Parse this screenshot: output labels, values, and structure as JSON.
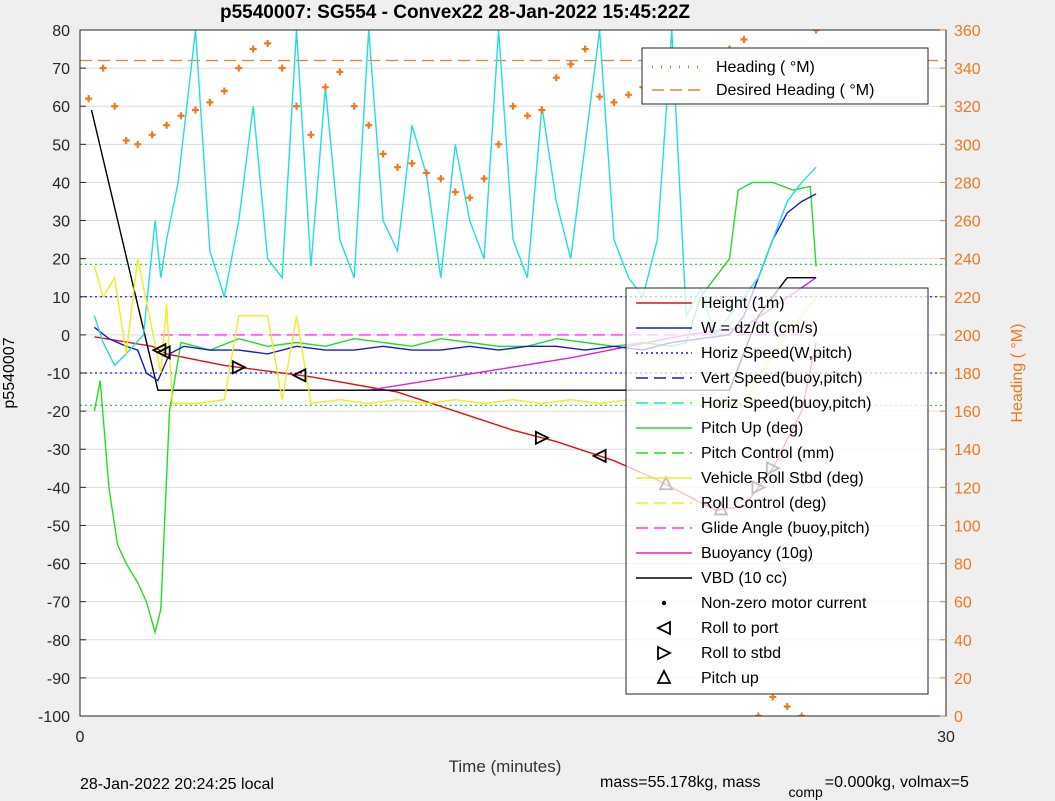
{
  "chart_data": {
    "type": "line",
    "title": "p5540007: SG554 - Convex22 28-Jan-2022 15:45:22Z",
    "xlabel": "Time (minutes)",
    "ylabel": "p5540007",
    "ylabel_right": "Heading (  °M)",
    "xlim": [
      0,
      30
    ],
    "ylim": [
      -100,
      80
    ],
    "ylim_right": [
      0,
      360
    ],
    "x_ticks": [
      "0",
      "30"
    ],
    "y_ticks": [
      "80",
      "70",
      "60",
      "50",
      "40",
      "30",
      "20",
      "10",
      "0",
      "-10",
      "-20",
      "-30",
      "-40",
      "-50",
      "-60",
      "-70",
      "-80",
      "-90",
      "-100"
    ],
    "y_ticks_right": [
      "360",
      "340",
      "320",
      "300",
      "280",
      "260",
      "240",
      "220",
      "200",
      "180",
      "160",
      "140",
      "120",
      "100",
      "80",
      "60",
      "40",
      "20",
      "0"
    ],
    "grid": true,
    "footer_left": "28-Jan-2022 20:24:25 local",
    "footer_right_a": "mass=55.178kg, mass",
    "footer_right_sub": "comp",
    "footer_right_b": "=0.000kg, volmax=5",
    "legend_top": {
      "placement": "top-right",
      "entries": [
        "Heading (  °M)",
        "Desired Heading (  °M)"
      ]
    },
    "legend_main": {
      "placement": "right",
      "entries": [
        "Height (1m)",
        "W = dz/dt (cm/s)",
        "Horiz Speed(W,pitch)",
        "Vert Speed(buoy,pitch)",
        "Horiz Speed(buoy,pitch)",
        "Pitch Up (deg)",
        "Pitch Control (mm)",
        "Vehicle Roll Stbd (deg)",
        "Roll Control (deg)",
        "Glide Angle (buoy,pitch)",
        "Buoyancy (10g)",
        "VBD (10 cc)",
        "Non-zero motor current",
        "Roll to port",
        "Roll to stbd",
        "Pitch up"
      ]
    },
    "reference_lines": [
      {
        "y": 18.5,
        "color": "#33cc33"
      },
      {
        "y": -18.5,
        "color": "#33cc33"
      },
      {
        "y": 10,
        "color": "#2222cc"
      },
      {
        "y": -10,
        "color": "#2222cc"
      },
      {
        "y_right": 344,
        "color": "#e8823a"
      }
    ],
    "series": [
      {
        "name": "Height (1m)",
        "color": "#e01010",
        "x": [
          0.5,
          2.5,
          3.0,
          5.0,
          8.0,
          11.0,
          15.0,
          16.5,
          18.5,
          20.0,
          21.0,
          22.0,
          23.0,
          24.0,
          25.0,
          25.5
        ],
        "y": [
          -0.5,
          -3,
          -5,
          -8,
          -11,
          -15,
          -25,
          -28,
          -33,
          -38,
          -42,
          -46,
          -45,
          -35,
          -20,
          -2
        ]
      },
      {
        "name": "Buoyancy (10g)",
        "color": "#dd22dd",
        "x": [
          2.7,
          10.0,
          17.0,
          21.0,
          23.0,
          25.5
        ],
        "y": [
          -14.5,
          -14.5,
          -6,
          0,
          2,
          15
        ]
      },
      {
        "name": "VBD (10 cc)",
        "color": "#000000",
        "x": [
          0.4,
          2.7,
          10.0,
          20.0,
          22.5,
          23.5,
          24.5,
          25.5
        ],
        "y": [
          59,
          -14.5,
          -14.5,
          -14.5,
          -14.5,
          5,
          15,
          15
        ]
      },
      {
        "name": "Glide Angle (buoy,pitch)",
        "color": "#ff33ff",
        "x": [
          2.8,
          25.5
        ],
        "y": [
          0,
          0
        ]
      },
      {
        "name": "Pitch Up (deg)",
        "color": "#22dd22",
        "x": [
          0.5,
          0.7,
          1.0,
          1.3,
          1.6,
          2.0,
          2.3,
          2.6,
          2.8,
          3.1,
          3.5,
          4.5,
          5.5,
          6.5,
          7.5,
          8.5,
          9.5,
          10.5,
          11.5,
          12.5,
          13.5,
          14.5,
          15.5,
          16.5,
          17.5,
          18.5,
          19.5,
          20.5,
          21.0,
          21.5,
          22.0,
          22.5,
          22.8,
          23.3,
          24.0,
          24.7,
          25.3,
          25.5
        ],
        "y": [
          -20,
          -12,
          -40,
          -55,
          -60,
          -65,
          -70,
          -78,
          -72,
          -20,
          -2,
          -4,
          -1,
          -3,
          -2,
          -3,
          -1,
          -2,
          -3,
          -1,
          -2,
          -3,
          -3,
          -1,
          -2,
          -3,
          -2,
          -3,
          -2,
          10,
          15,
          20,
          38,
          40,
          40,
          38,
          39,
          18
        ]
      },
      {
        "name": "W = dz/dt (cm/s)",
        "color": "#1a1acc",
        "x": [
          0.5,
          1.0,
          1.6,
          2.0,
          2.3,
          2.7,
          3.1,
          3.6,
          4.5,
          5.5,
          6.5,
          7.5,
          8.5,
          9.5,
          10.5,
          11.5,
          12.5,
          13.5,
          14.5,
          15.5,
          16.5,
          17.5,
          18.5,
          19.5,
          20.5,
          21.5,
          22.5,
          23.0,
          23.5,
          24.0,
          24.5,
          25.0,
          25.5
        ],
        "y": [
          2,
          -1,
          -3,
          -4,
          -10,
          -12,
          -5,
          -3,
          -4,
          -4,
          -5,
          -3,
          -4,
          -4,
          -3,
          -4,
          -4,
          -3,
          -4,
          -3,
          -3,
          -4,
          -3,
          -4,
          -2,
          -1,
          0,
          5,
          15,
          25,
          32,
          35,
          37
        ]
      },
      {
        "name": "Horiz Speed(buoy,pitch)",
        "color": "#22dddd",
        "x": [
          0.5,
          0.8,
          1.2,
          1.6,
          2.2,
          2.6,
          2.8,
          3.0,
          3.4,
          4.0,
          4.5,
          5.0,
          5.5,
          6.0,
          6.5,
          7.0,
          7.5,
          8.0,
          8.5,
          9.0,
          9.5,
          10.0,
          10.5,
          11.0,
          11.5,
          12.0,
          12.5,
          13.0,
          13.5,
          14.0,
          14.5,
          15.0,
          15.5,
          16.0,
          16.5,
          17.0,
          17.5,
          18.0,
          18.5,
          19.0,
          19.5,
          20.0,
          20.5,
          21.0,
          21.5,
          22.0,
          22.5,
          23.0,
          23.5,
          24.0,
          24.5,
          25.0,
          25.5
        ],
        "y": [
          5,
          -2,
          -8,
          -5,
          0,
          30,
          15,
          25,
          40,
          80,
          22,
          10,
          30,
          60,
          20,
          15,
          80,
          18,
          65,
          25,
          15,
          80,
          30,
          22,
          55,
          42,
          15,
          50,
          30,
          20,
          80,
          25,
          15,
          60,
          35,
          20,
          50,
          80,
          25,
          15,
          10,
          25,
          80,
          5,
          12,
          0,
          5,
          10,
          15,
          25,
          35,
          40,
          44
        ]
      },
      {
        "name": "Vehicle Roll Stbd (deg)",
        "color": "#eeee22",
        "x": [
          0.5,
          0.8,
          1.2,
          1.6,
          2.0,
          2.4,
          2.8,
          3.0,
          3.2,
          4.0,
          5.0,
          5.5,
          6.0,
          6.5,
          7.0,
          7.5,
          8.0,
          9.0,
          10.0,
          11.0,
          12.0,
          13.0,
          14.0,
          15.0,
          16.0,
          17.0,
          18.0,
          19.0,
          20.0,
          21.0,
          22.0,
          23.0,
          24.0,
          25.0,
          25.5
        ],
        "y": [
          18,
          10,
          15,
          -5,
          20,
          5,
          -10,
          8,
          -18,
          -18,
          -17,
          5,
          5,
          5,
          -17,
          5,
          -18,
          -17,
          -18,
          -17,
          -18,
          -17,
          -18,
          -17,
          -18,
          -17,
          -18,
          -17,
          -18,
          -17,
          -18,
          -18,
          -5,
          5,
          10
        ]
      }
    ],
    "heading_series": {
      "name": "Heading (  °M)",
      "color": "#f07820",
      "x": [
        0.3,
        0.8,
        1.2,
        1.6,
        2.0,
        2.5,
        3.0,
        3.5,
        4.0,
        4.5,
        5.0,
        5.5,
        6.0,
        6.5,
        7.0,
        7.5,
        8.0,
        8.5,
        9.0,
        9.5,
        10.0,
        10.5,
        11.0,
        11.5,
        12.0,
        12.5,
        13.0,
        13.5,
        14.0,
        14.5,
        15.0,
        15.5,
        16.0,
        16.5,
        17.0,
        17.5,
        18.0,
        18.5,
        19.0,
        19.5,
        20.0,
        20.5,
        21.0,
        21.5,
        22.0,
        22.5,
        23.0,
        23.5,
        24.0,
        24.5,
        25.0,
        25.5
      ],
      "y": [
        324,
        340,
        320,
        302,
        300,
        305,
        310,
        315,
        318,
        322,
        328,
        340,
        350,
        353,
        340,
        320,
        305,
        330,
        338,
        320,
        310,
        295,
        288,
        290,
        285,
        282,
        275,
        272,
        282,
        300,
        320,
        315,
        318,
        335,
        342,
        350,
        325,
        322,
        326,
        330,
        328,
        325,
        325,
        335,
        345,
        350,
        355,
        0,
        10,
        5,
        0,
        360
      ]
    }
  }
}
